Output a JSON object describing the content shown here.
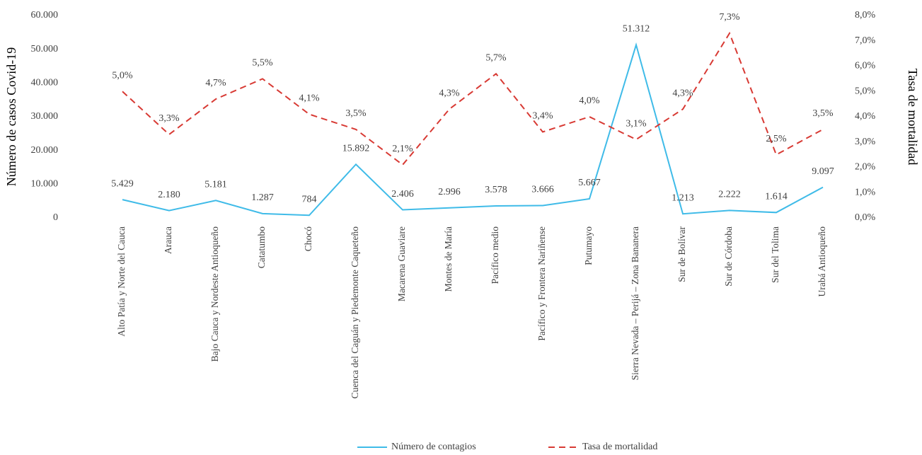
{
  "chart_data": {
    "type": "line",
    "categories": [
      "Alto Patía y Norte del Cauca",
      "Arauca",
      "Bajo Cauca y Nordeste Antioqueño",
      "Catatumbo",
      "Chocó",
      "Cuenca del Caguán y Piedemonte Caqueteño",
      "Macarena Guaviare",
      "Montes de María",
      "Pacífico medio",
      "Pacífico y Frontera Nariñense",
      "Putumayo",
      "Sierra Nevada – Perijá – Zona Bananera",
      "Sur de Bolívar",
      "Sur de Córdoba",
      "Sur del Tolima",
      "Urabá Antioqueño"
    ],
    "series": [
      {
        "name": "Número de contagios",
        "color": "#3fbbe8",
        "dash": false,
        "values": [
          5429,
          2180,
          5181,
          1287,
          784,
          15892,
          2406,
          2996,
          3578,
          3666,
          5667,
          51312,
          1213,
          2222,
          1614,
          9097
        ],
        "value_labels": [
          "5.429",
          "2.180",
          "5.181",
          "1.287",
          "784",
          "15.892",
          "2.406",
          "2.996",
          "3.578",
          "3.666",
          "5.667",
          "51.312",
          "1.213",
          "2.222",
          "1.614",
          "9.097"
        ]
      },
      {
        "name": "Tasa de mortalidad",
        "color": "#d83a34",
        "dash": true,
        "axis": "y2",
        "values": [
          5.0,
          3.3,
          4.7,
          5.5,
          4.1,
          3.5,
          2.1,
          4.3,
          5.7,
          3.4,
          4.0,
          3.1,
          4.3,
          7.3,
          2.5,
          3.5
        ],
        "value_labels": [
          "5,0%",
          "3,3%",
          "4,7%",
          "5,5%",
          "4,1%",
          "3,5%",
          "2,1%",
          "4,3%",
          "5,7%",
          "3,4%",
          "4,0%",
          "3,1%",
          "4,3%",
          "7,3%",
          "2,5%",
          "3,5%"
        ]
      }
    ],
    "ylabel": "Número de casos Covid-19",
    "y2label": "Tasa de mortalidad",
    "ylim": [
      0,
      60000
    ],
    "yticks": [
      0,
      {
        "value": 10000,
        "label": "10.000"
      },
      {
        "value": 20000,
        "label": "20.000"
      },
      {
        "value": 30000,
        "label": "30.000"
      },
      {
        "value": 40000,
        "label": "40.000"
      },
      {
        "value": 50000,
        "label": "50.000"
      },
      {
        "value": 60000,
        "label": "60.000"
      }
    ],
    "y2lim": [
      0,
      8
    ],
    "y2ticks": [
      {
        "value": 0,
        "label": "0,0%"
      },
      {
        "value": 1,
        "label": "1,0%"
      },
      {
        "value": 2,
        "label": "2,0%"
      },
      {
        "value": 3,
        "label": "3,0%"
      },
      {
        "value": 4,
        "label": "4,0%"
      },
      {
        "value": 5,
        "label": "5,0%"
      },
      {
        "value": 6,
        "label": "6,0%"
      },
      {
        "value": 7,
        "label": "7,0%"
      },
      {
        "value": 8,
        "label": "8,0%"
      }
    ],
    "grid": false,
    "legend": "bottom"
  }
}
